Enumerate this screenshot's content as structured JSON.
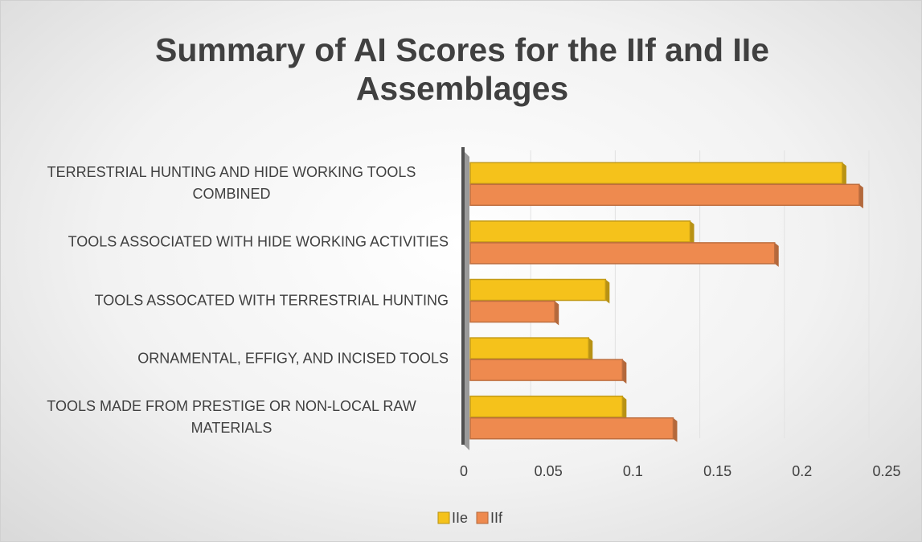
{
  "chart_data": {
    "type": "bar",
    "orientation": "horizontal",
    "title": "Summary of AI Scores for the IIf and IIe Assemblages",
    "categories": [
      "TERRESTRIAL HUNTING AND HIDE WORKING TOOLS COMBINED",
      "TOOLS ASSOCIATED WITH HIDE WORKING ACTIVITIES",
      "TOOLS ASSOCATED WITH TERRESTRIAL HUNTING",
      "ORNAMENTAL, EFFIGY, AND INCISED TOOLS",
      "TOOLS MADE FROM PRESTIGE OR NON-LOCAL RAW MATERIALS"
    ],
    "series": [
      {
        "name": "IIe",
        "color": "#f5c21b",
        "values": [
          0.22,
          0.13,
          0.08,
          0.07,
          0.09
        ]
      },
      {
        "name": "IIf",
        "color": "#ee8a4f",
        "values": [
          0.23,
          0.18,
          0.05,
          0.09,
          0.12
        ]
      }
    ],
    "xlim": [
      0,
      0.25
    ],
    "xticks": [
      0,
      0.05,
      0.1,
      0.15,
      0.2,
      0.25
    ],
    "grid": true,
    "legend": "bottom"
  }
}
